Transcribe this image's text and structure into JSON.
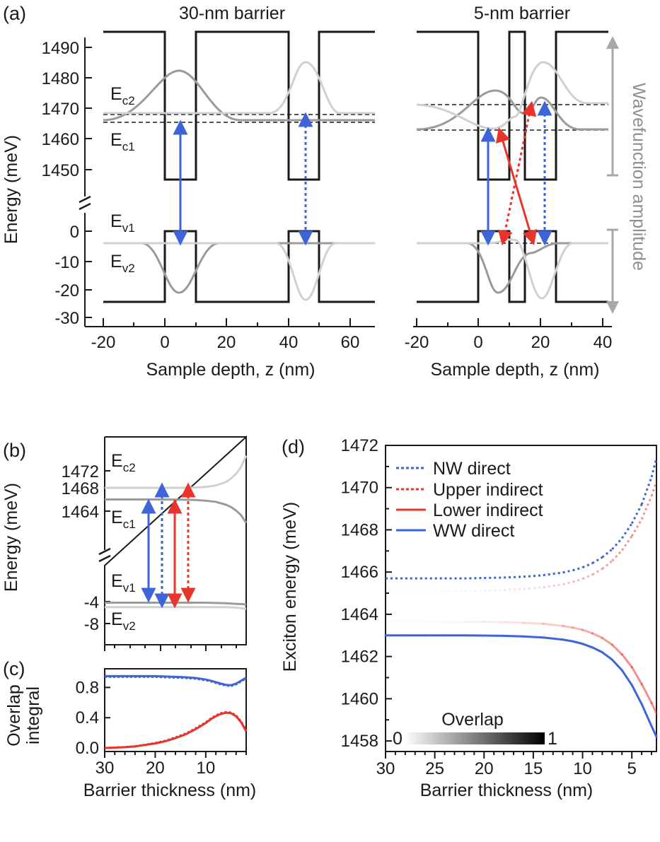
{
  "panels": {
    "a": {
      "label": "(a)",
      "left_title": "30-nm barrier",
      "right_title": "5-nm barrier"
    },
    "b": {
      "label": "(b)"
    },
    "c": {
      "label": "(c)"
    },
    "d": {
      "label": "(d)"
    }
  },
  "chart_data": [
    {
      "id": "a-left",
      "type": "line",
      "title": "30-nm barrier",
      "xlabel": "Sample depth, z (nm)",
      "ylabel": "Energy (meV)",
      "xlim": [
        -20,
        67
      ],
      "x_ticks": [
        "-20",
        "0",
        "20",
        "40",
        "60"
      ],
      "y_ticks_upper": [
        "1490",
        "1480",
        "1470",
        "1460",
        "1450"
      ],
      "y_ticks_lower": [
        "0",
        "-10",
        "-20",
        "-30"
      ],
      "level_labels": {
        "Ec2": "E",
        "Ec2_sub": "c2",
        "Ec1": "E",
        "Ec1_sub": "c1",
        "Ev1": "E",
        "Ev1_sub": "v1",
        "Ev2": "E",
        "Ev2_sub": "v2"
      },
      "wells": [
        {
          "from": 0,
          "to": 10
        },
        {
          "from": 40,
          "to": 49
        }
      ],
      "conduction_band": {
        "barrier_meV": 1494,
        "well_meV": 1448
      },
      "valence_band": {
        "well_meV": 0,
        "barrier_meV": -25
      },
      "levels_meV": {
        "Ec2": 1467.5,
        "Ec1": 1466,
        "Ev1": -4,
        "Ev2": -4.5
      },
      "transitions": [
        {
          "name": "WW direct",
          "z": 5,
          "from": 1466,
          "to": -4,
          "style": "solid",
          "color": "blue"
        },
        {
          "name": "NW direct",
          "z": 45,
          "from": 1467.5,
          "to": -4.5,
          "style": "dotted",
          "color": "blue"
        }
      ]
    },
    {
      "id": "a-right",
      "type": "line",
      "title": "5-nm barrier",
      "xlabel": "Sample depth, z (nm)",
      "ylabel": "Wavefunction amplitude",
      "xlim": [
        -20,
        42
      ],
      "x_ticks": [
        "-20",
        "0",
        "20",
        "40"
      ],
      "wells": [
        {
          "from": 0,
          "to": 10
        },
        {
          "from": 15,
          "to": 24
        }
      ],
      "levels_meV": {
        "Ec2": 1471,
        "Ec1": 1463.5,
        "Ev1": -4,
        "Ev2": -5
      },
      "transitions": [
        {
          "name": "WW direct",
          "style": "solid",
          "color": "blue"
        },
        {
          "name": "Lower indirect",
          "style": "solid",
          "color": "red"
        },
        {
          "name": "Upper indirect",
          "style": "dotted",
          "color": "red"
        },
        {
          "name": "NW direct",
          "style": "dotted",
          "color": "blue"
        }
      ]
    },
    {
      "id": "b",
      "type": "line",
      "xlabel": "",
      "ylabel": "Energy (meV)",
      "xlim": [
        30,
        2
      ],
      "y_ticks_upper": [
        "1472",
        "1468",
        "1464"
      ],
      "y_ticks_lower": [
        "-4",
        "-8"
      ],
      "x": [
        30,
        25,
        20,
        15,
        12,
        10,
        8,
        6,
        5,
        4,
        3,
        2
      ],
      "series": [
        {
          "name": "Ec2",
          "values": [
            1468,
            1468,
            1468,
            1468,
            1468.05,
            1468.15,
            1468.4,
            1469,
            1469.6,
            1470.4,
            1471.6,
            1473.5
          ]
        },
        {
          "name": "Ec1",
          "values": [
            1466,
            1466,
            1466,
            1465.98,
            1465.9,
            1465.8,
            1465.6,
            1465.1,
            1464.7,
            1464.1,
            1463.3,
            1462
          ]
        },
        {
          "name": "Ev1",
          "values": [
            -4.2,
            -4.2,
            -4.2,
            -4.2,
            -4.2,
            -4.2,
            -4.25,
            -4.3,
            -4.35,
            -4.4,
            -4.45,
            -4.5
          ]
        },
        {
          "name": "Ev2",
          "values": [
            -5,
            -5,
            -5,
            -5,
            -5,
            -5,
            -5,
            -5,
            -5.05,
            -5.1,
            -5.2,
            -5.3
          ]
        }
      ],
      "level_labels": {
        "Ec2": "E",
        "Ec2_sub": "c2",
        "Ec1": "E",
        "Ec1_sub": "c1",
        "Ev1": "E",
        "Ev1_sub": "v1",
        "Ev2": "E",
        "Ev2_sub": "v2"
      }
    },
    {
      "id": "c",
      "type": "line",
      "xlabel": "Barrier thickness (nm)",
      "ylabel": "Overlap integral",
      "ylabel_lines": [
        "Overlap",
        "integral"
      ],
      "xlim": [
        30,
        2
      ],
      "ylim": [
        0,
        1
      ],
      "x_ticks": [
        "30",
        "20",
        "10"
      ],
      "y_ticks": [
        "0.8",
        "0.4",
        "0.0"
      ],
      "x": [
        30,
        28,
        26,
        24,
        22,
        20,
        18,
        16,
        14,
        12,
        10,
        9,
        8,
        7,
        6,
        5,
        4,
        3,
        2
      ],
      "series": [
        {
          "name": "WW direct",
          "values": [
            0.95,
            0.95,
            0.95,
            0.95,
            0.95,
            0.95,
            0.945,
            0.94,
            0.935,
            0.925,
            0.905,
            0.89,
            0.87,
            0.85,
            0.835,
            0.83,
            0.85,
            0.89,
            0.93
          ]
        },
        {
          "name": "NW direct",
          "values": [
            0.94,
            0.94,
            0.94,
            0.94,
            0.94,
            0.94,
            0.935,
            0.93,
            0.925,
            0.915,
            0.895,
            0.88,
            0.86,
            0.84,
            0.825,
            0.82,
            0.84,
            0.88,
            0.92
          ]
        },
        {
          "name": "Lower indirect",
          "values": [
            0.0,
            0.005,
            0.01,
            0.02,
            0.04,
            0.06,
            0.09,
            0.13,
            0.18,
            0.25,
            0.33,
            0.38,
            0.42,
            0.45,
            0.465,
            0.46,
            0.42,
            0.34,
            0.22
          ]
        },
        {
          "name": "Upper indirect",
          "values": [
            0.0,
            0.005,
            0.012,
            0.022,
            0.042,
            0.065,
            0.095,
            0.14,
            0.19,
            0.26,
            0.34,
            0.39,
            0.43,
            0.46,
            0.475,
            0.47,
            0.43,
            0.35,
            0.23
          ]
        }
      ]
    },
    {
      "id": "d",
      "type": "line",
      "xlabel": "Barrier thickness (nm)",
      "ylabel": "Exciton energy (meV)",
      "xlim": [
        30,
        2.5
      ],
      "ylim": [
        1457.5,
        1472
      ],
      "x_ticks": [
        "30",
        "25",
        "20",
        "15",
        "10",
        "5"
      ],
      "y_ticks": [
        "1472",
        "1470",
        "1468",
        "1466",
        "1464",
        "1462",
        "1460",
        "1458"
      ],
      "legend": [
        "NW direct",
        "Upper indirect",
        "Lower indirect",
        "WW direct"
      ],
      "colorbar": {
        "title": "Overlap",
        "min_label": "0",
        "max_label": "1"
      },
      "x": [
        30,
        28,
        26,
        24,
        22,
        20,
        18,
        16,
        14,
        12,
        11,
        10,
        9,
        8,
        7,
        6,
        5,
        4,
        3,
        2.5
      ],
      "series": [
        {
          "name": "NW direct",
          "style": "dotted",
          "color": "#3f63d9",
          "values": [
            1465.7,
            1465.7,
            1465.7,
            1465.7,
            1465.7,
            1465.72,
            1465.74,
            1465.78,
            1465.85,
            1465.98,
            1466.08,
            1466.22,
            1466.42,
            1466.7,
            1467.08,
            1467.6,
            1468.3,
            1469.2,
            1470.5,
            1471.4
          ]
        },
        {
          "name": "Upper indirect",
          "style": "dotted",
          "color": "#e8342a",
          "values": [
            1465.1,
            1465.1,
            1465.1,
            1465.1,
            1465.1,
            1465.12,
            1465.15,
            1465.2,
            1465.28,
            1465.42,
            1465.53,
            1465.68,
            1465.88,
            1466.15,
            1466.53,
            1467.03,
            1467.7,
            1468.5,
            1469.6,
            1470.3
          ]
        },
        {
          "name": "Lower indirect",
          "style": "solid",
          "color": "#e8342a",
          "values": [
            1463.65,
            1463.65,
            1463.65,
            1463.65,
            1463.65,
            1463.64,
            1463.63,
            1463.6,
            1463.55,
            1463.45,
            1463.37,
            1463.26,
            1463.1,
            1462.88,
            1462.56,
            1462.1,
            1461.5,
            1460.7,
            1459.8,
            1459.3
          ]
        },
        {
          "name": "WW direct",
          "style": "solid",
          "color": "#3f63d9",
          "values": [
            1463.0,
            1463.0,
            1463.0,
            1463.0,
            1463.0,
            1462.99,
            1462.98,
            1462.95,
            1462.9,
            1462.8,
            1462.72,
            1462.6,
            1462.43,
            1462.2,
            1461.85,
            1461.35,
            1460.65,
            1459.75,
            1458.7,
            1458.2
          ]
        }
      ]
    }
  ]
}
